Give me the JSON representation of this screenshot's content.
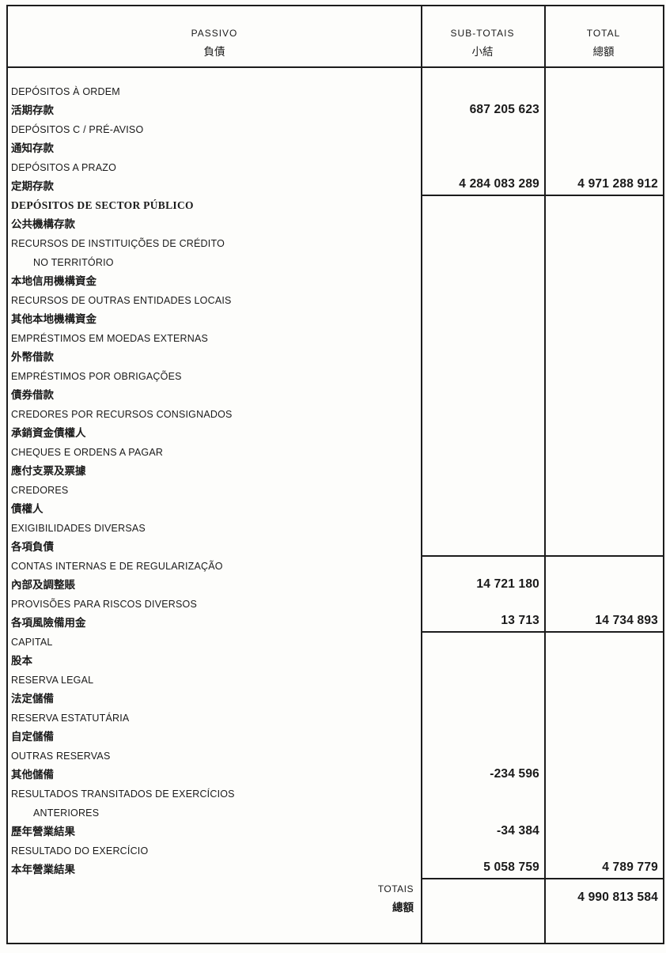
{
  "colors": {
    "ink": "#1c1c1c",
    "paper": "#fdfdfb"
  },
  "header": {
    "passivo_pt": "PASSIVO",
    "passivo_zh": "負債",
    "subtotals_pt": "SUB-TOTAIS",
    "subtotals_zh": "小結",
    "total_pt": "TOTAL",
    "total_zh": "總額"
  },
  "rows": [
    {
      "pt": [
        "DEPÓSITOS À ORDEM"
      ],
      "zh": "活期存款",
      "sub": "687 205 623",
      "total": "",
      "rule": false,
      "serif": false
    },
    {
      "pt": [
        "DEPÓSITOS C / PRÉ-AVISO"
      ],
      "zh": "通知存款",
      "sub": "",
      "total": "",
      "rule": false,
      "serif": false
    },
    {
      "pt": [
        "DEPÓSITOS A PRAZO"
      ],
      "zh": "定期存款",
      "sub": "4 284 083 289",
      "total": "4 971 288 912",
      "rule": true,
      "serif": false
    },
    {
      "pt": [
        "DEPÓSITOS DE SECTOR PÚBLICO"
      ],
      "zh": "公共機構存款",
      "sub": "",
      "total": "",
      "rule": false,
      "serif": true
    },
    {
      "pt": [
        "RECURSOS DE INSTITUIÇÕES DE CRÉDITO",
        "NO TERRITÓRIO"
      ],
      "indent2": true,
      "zh": "本地信用機構資金",
      "sub": "",
      "total": "",
      "rule": false,
      "serif": false
    },
    {
      "pt": [
        "RECURSOS DE OUTRAS ENTIDADES LOCAIS"
      ],
      "zh": "其他本地機構資金",
      "sub": "",
      "total": "",
      "rule": false,
      "serif": false
    },
    {
      "pt": [
        "EMPRÉSTIMOS EM MOEDAS EXTERNAS"
      ],
      "zh": "外幣借款",
      "sub": "",
      "total": "",
      "rule": false,
      "serif": false
    },
    {
      "pt": [
        "EMPRÉSTIMOS POR OBRIGAÇÕES"
      ],
      "zh": "債券借款",
      "sub": "",
      "total": "",
      "rule": false,
      "serif": false
    },
    {
      "pt": [
        "CREDORES POR RECURSOS CONSIGNADOS"
      ],
      "zh": "承銷資金債權人",
      "sub": "",
      "total": "",
      "rule": false,
      "serif": false
    },
    {
      "pt": [
        "CHEQUES E ORDENS A PAGAR"
      ],
      "zh": "應付支票及票據",
      "sub": "",
      "total": "",
      "rule": false,
      "serif": false
    },
    {
      "pt": [
        "CREDORES"
      ],
      "zh": "債權人",
      "sub": "",
      "total": "",
      "rule": false,
      "serif": false
    },
    {
      "pt": [
        "EXIGIBILIDADES DIVERSAS"
      ],
      "zh": "各項負債",
      "sub": "",
      "total": "",
      "rule": true,
      "serif": false
    },
    {
      "pt": [
        "CONTAS INTERNAS E DE REGULARIZAÇÃO"
      ],
      "zh": "內部及調整賬",
      "sub": "14 721 180",
      "total": "",
      "rule": false,
      "serif": false
    },
    {
      "pt": [
        "PROVISÕES PARA RISCOS DIVERSOS"
      ],
      "zh": "各項風險備用金",
      "sub": "13 713",
      "total": "14 734 893",
      "rule": true,
      "serif": false
    },
    {
      "pt": [
        "CAPITAL"
      ],
      "zh": "股本",
      "sub": "",
      "total": "",
      "rule": false,
      "serif": false
    },
    {
      "pt": [
        "RESERVA LEGAL"
      ],
      "zh": "法定儲備",
      "sub": "",
      "total": "",
      "rule": false,
      "serif": false
    },
    {
      "pt": [
        "RESERVA ESTATUTÁRIA"
      ],
      "zh": "自定儲備",
      "sub": "",
      "total": "",
      "rule": false,
      "serif": false
    },
    {
      "pt": [
        "OUTRAS RESERVAS"
      ],
      "zh": "其他儲備",
      "sub": "-234 596",
      "total": "",
      "rule": false,
      "serif": false
    },
    {
      "pt": [
        "RESULTADOS TRANSITADOS DE EXERCÍCIOS",
        "ANTERIORES"
      ],
      "indent2": true,
      "zh": "歷年營業結果",
      "sub": "-34 384",
      "total": "",
      "rule": false,
      "serif": false
    },
    {
      "pt": [
        "RESULTADO DO EXERCÍCIO"
      ],
      "zh": "本年營業結果",
      "sub": "5 058 759",
      "total": "4 789 779",
      "rule": true,
      "serif": false
    }
  ],
  "totals_row": {
    "label_pt": "TOTAIS",
    "label_zh": "總額",
    "sub": "",
    "total": "4 990 813 584"
  }
}
